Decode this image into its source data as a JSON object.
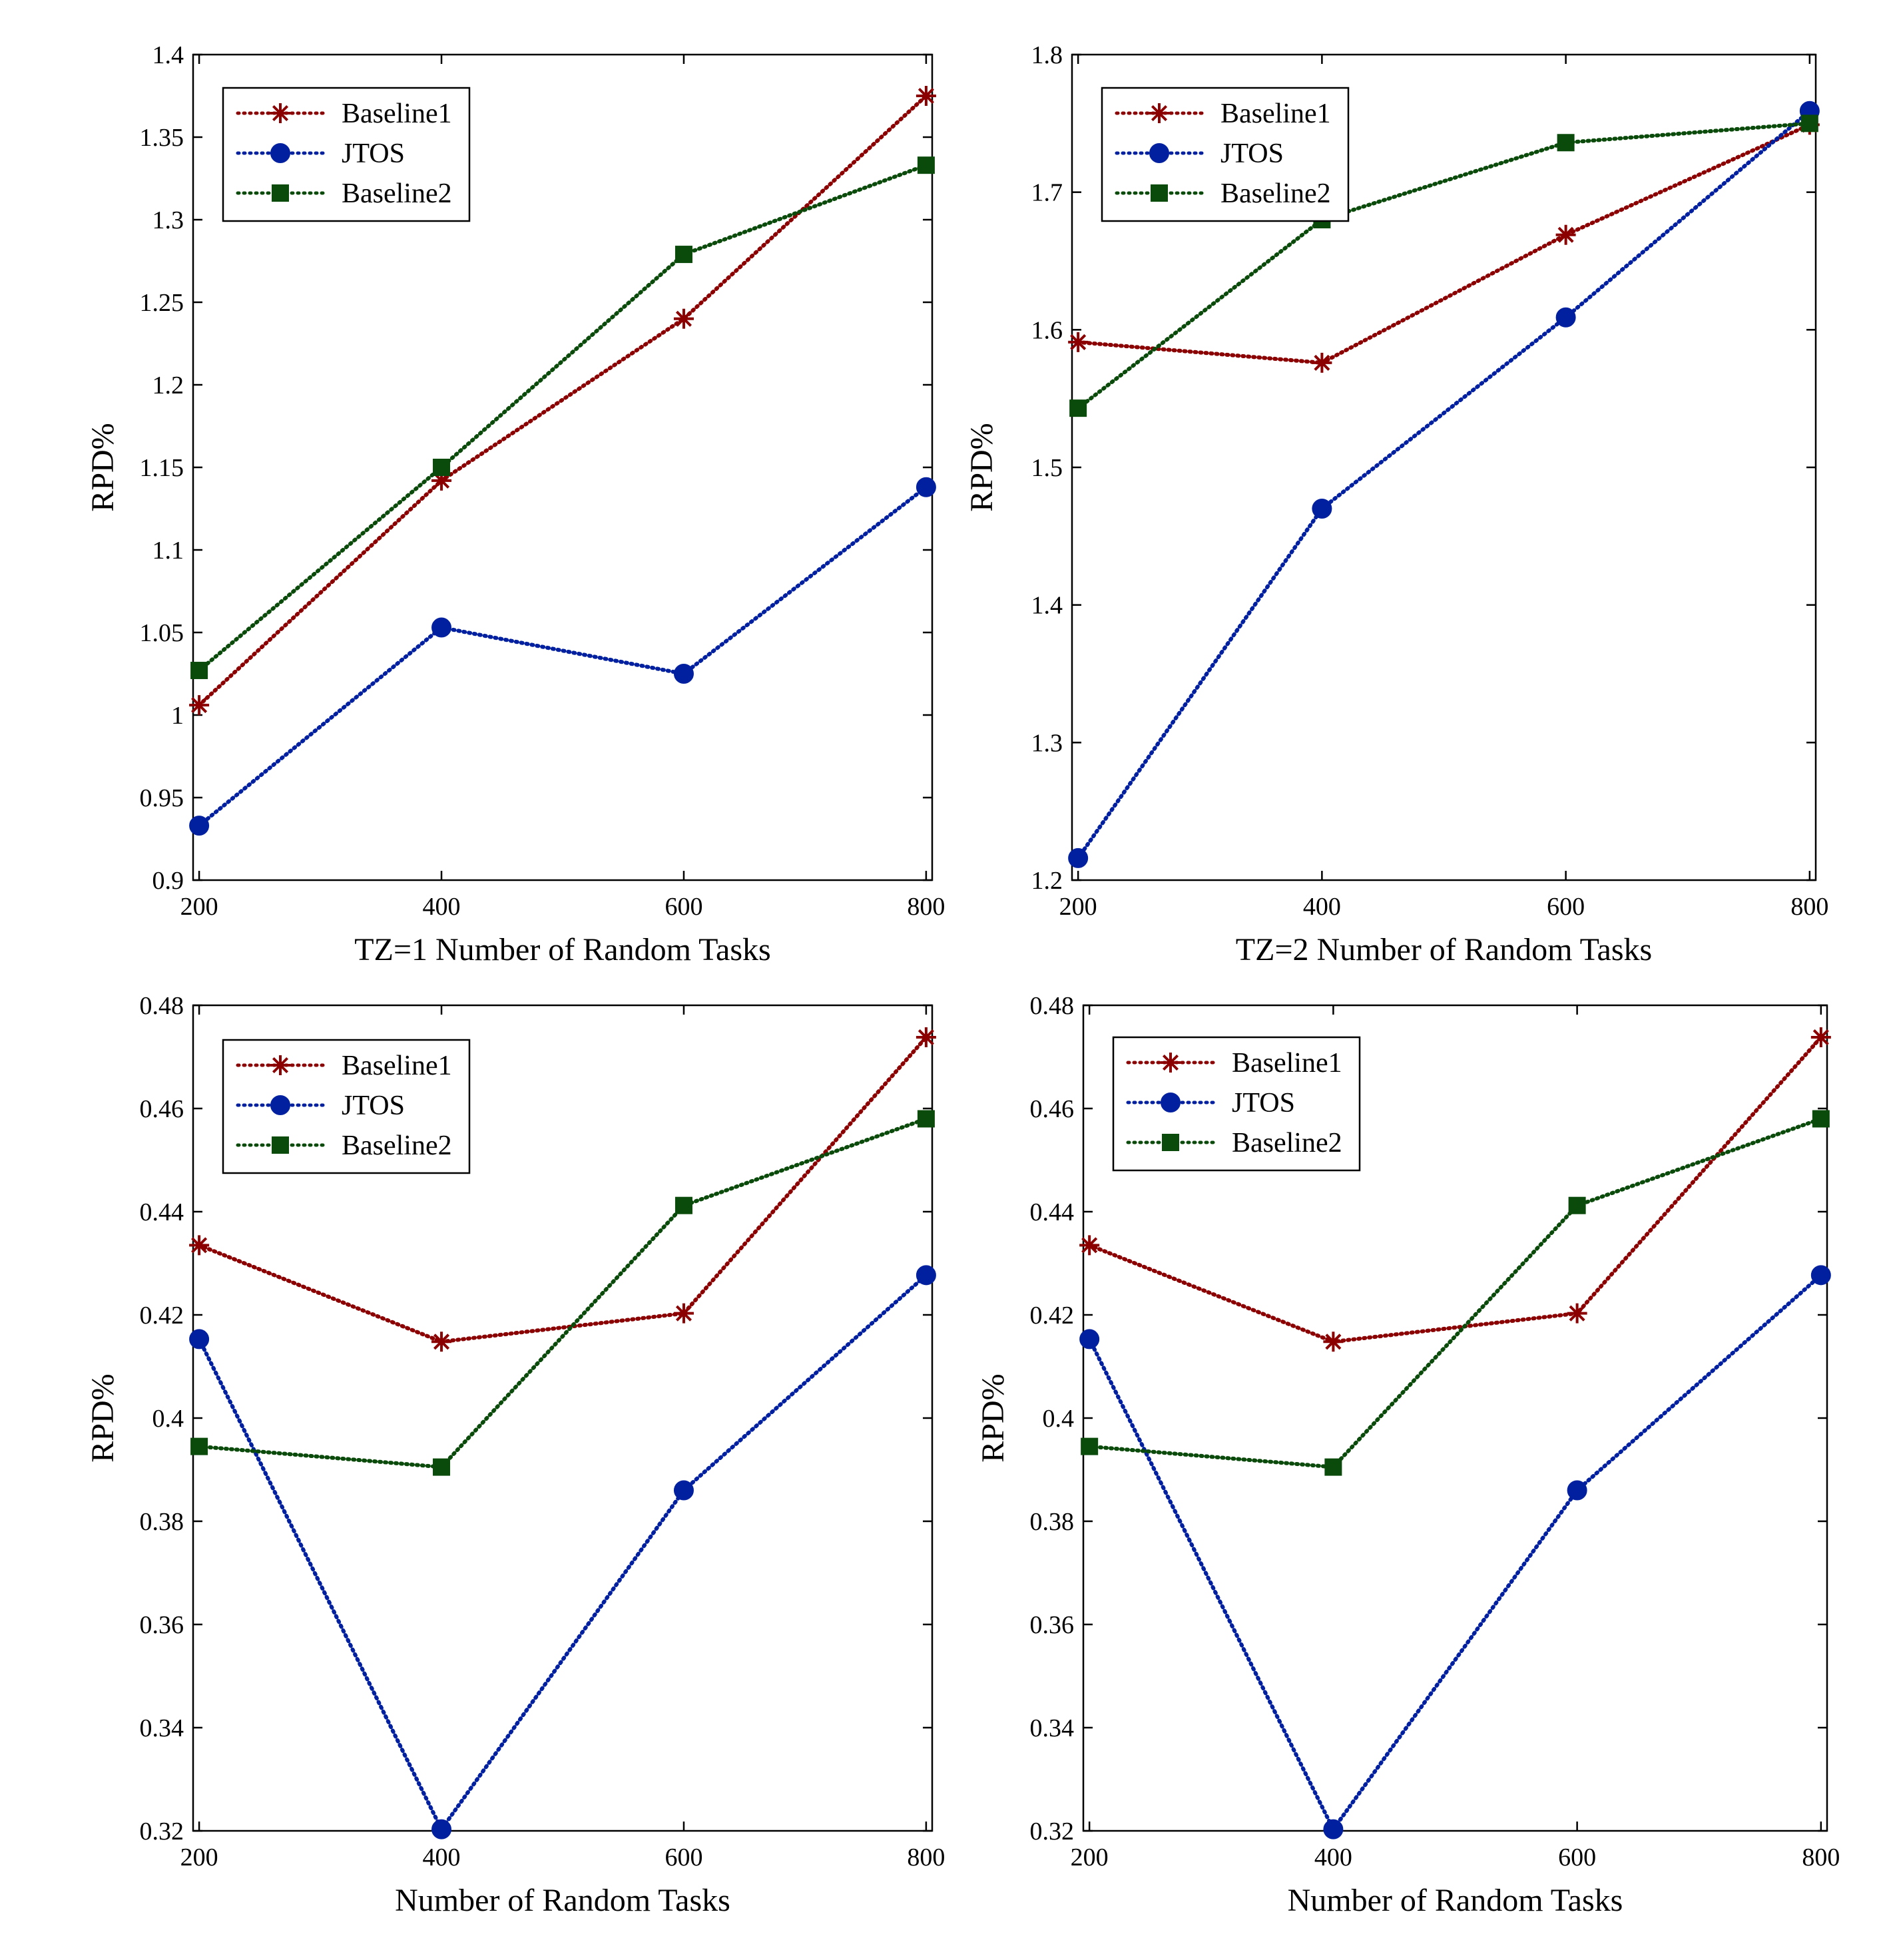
{
  "colors": {
    "baseline1": "#8B0000",
    "jtos": "#0020A0",
    "baseline2": "#0A4A0A",
    "axis": "#000000"
  },
  "chart_data": [
    {
      "type": "line",
      "title": "",
      "xlabel": "TZ=1 Number of  Random Tasks",
      "ylabel": "RPD%",
      "x": [
        200,
        400,
        600,
        800
      ],
      "xlim": [
        195,
        805
      ],
      "ylim": [
        0.9,
        1.4
      ],
      "xticks": [
        "200",
        "400",
        "600",
        "800"
      ],
      "yticks": [
        "0.9",
        "0.95",
        "1",
        "1.05",
        "1.1",
        "1.15",
        "1.2",
        "1.25",
        "1.3",
        "1.35",
        "1.4"
      ],
      "yticks_values": [
        0.9,
        0.95,
        1.0,
        1.05,
        1.1,
        1.15,
        1.2,
        1.25,
        1.3,
        1.35,
        1.4
      ],
      "grid": false,
      "legend_position": "top-left",
      "series": [
        {
          "name": "Baseline1",
          "key": "baseline1",
          "marker": "asterisk",
          "values": [
            1.006,
            1.142,
            1.24,
            1.375
          ]
        },
        {
          "name": "JTOS",
          "key": "jtos",
          "marker": "circle",
          "values": [
            0.933,
            1.053,
            1.025,
            1.138
          ]
        },
        {
          "name": "Baseline2",
          "key": "baseline2",
          "marker": "square",
          "values": [
            1.027,
            1.15,
            1.279,
            1.333
          ]
        }
      ]
    },
    {
      "type": "line",
      "title": "",
      "xlabel": "TZ=2 Number of Random Tasks",
      "ylabel": "RPD%",
      "x": [
        200,
        400,
        600,
        800
      ],
      "xlim": [
        195,
        805
      ],
      "ylim": [
        1.2,
        1.8
      ],
      "xticks": [
        "200",
        "400",
        "600",
        "800"
      ],
      "yticks": [
        "1.2",
        "1.3",
        "1.4",
        "1.5",
        "1.6",
        "1.7",
        "1.8"
      ],
      "yticks_values": [
        1.2,
        1.3,
        1.4,
        1.5,
        1.6,
        1.7,
        1.8
      ],
      "grid": false,
      "legend_position": "top-left",
      "series": [
        {
          "name": "Baseline1",
          "key": "baseline1",
          "marker": "asterisk",
          "values": [
            1.591,
            1.576,
            1.669,
            1.749
          ]
        },
        {
          "name": "JTOS",
          "key": "jtos",
          "marker": "circle",
          "values": [
            1.216,
            1.47,
            1.609,
            1.759
          ]
        },
        {
          "name": "Baseline2",
          "key": "baseline2",
          "marker": "square",
          "values": [
            1.543,
            1.68,
            1.736,
            1.75
          ]
        }
      ]
    },
    {
      "type": "line",
      "title": "",
      "xlabel": "Number of  Random Tasks",
      "ylabel": "RPD%",
      "x": [
        200,
        400,
        600,
        800
      ],
      "xlim": [
        195,
        805
      ],
      "ylim": [
        0.32,
        0.48
      ],
      "xticks": [
        "200",
        "400",
        "600",
        "800"
      ],
      "yticks": [
        "0.32",
        "0.34",
        "0.36",
        "0.38",
        "0.4",
        "0.42",
        "0.44",
        "0.46",
        "0.48"
      ],
      "yticks_values": [
        0.32,
        0.34,
        0.36,
        0.38,
        0.4,
        0.42,
        0.44,
        0.46,
        0.48
      ],
      "grid": false,
      "legend_position": "top-left",
      "series": [
        {
          "name": "Baseline1",
          "key": "baseline1",
          "marker": "asterisk",
          "values": [
            0.4335,
            0.4148,
            0.4203,
            0.4738
          ]
        },
        {
          "name": "JTOS",
          "key": "jtos",
          "marker": "circle",
          "values": [
            0.4153,
            0.3203,
            0.386,
            0.4277
          ]
        },
        {
          "name": "Baseline2",
          "key": "baseline2",
          "marker": "square",
          "values": [
            0.3945,
            0.3905,
            0.4412,
            0.458
          ]
        }
      ]
    },
    {
      "type": "line",
      "title": "",
      "xlabel": "Number of  Random Tasks",
      "ylabel": "RPD%",
      "x": [
        200,
        400,
        600,
        800
      ],
      "xlim": [
        195,
        805
      ],
      "ylim": [
        0.32,
        0.48
      ],
      "xticks": [
        "200",
        "400",
        "600",
        "800"
      ],
      "yticks": [
        "0.32",
        "0.34",
        "0.36",
        "0.38",
        "0.4",
        "0.42",
        "0.44",
        "0.46",
        "0.48"
      ],
      "yticks_values": [
        0.32,
        0.34,
        0.36,
        0.38,
        0.4,
        0.42,
        0.44,
        0.46,
        0.48
      ],
      "grid": false,
      "legend_position": "top-left",
      "series": [
        {
          "name": "Baseline1",
          "key": "baseline1",
          "marker": "asterisk",
          "values": [
            0.4335,
            0.4148,
            0.4203,
            0.4738
          ]
        },
        {
          "name": "JTOS",
          "key": "jtos",
          "marker": "circle",
          "values": [
            0.4153,
            0.3203,
            0.386,
            0.4277
          ]
        },
        {
          "name": "Baseline2",
          "key": "baseline2",
          "marker": "square",
          "values": [
            0.3945,
            0.3905,
            0.4412,
            0.458
          ]
        }
      ]
    }
  ]
}
